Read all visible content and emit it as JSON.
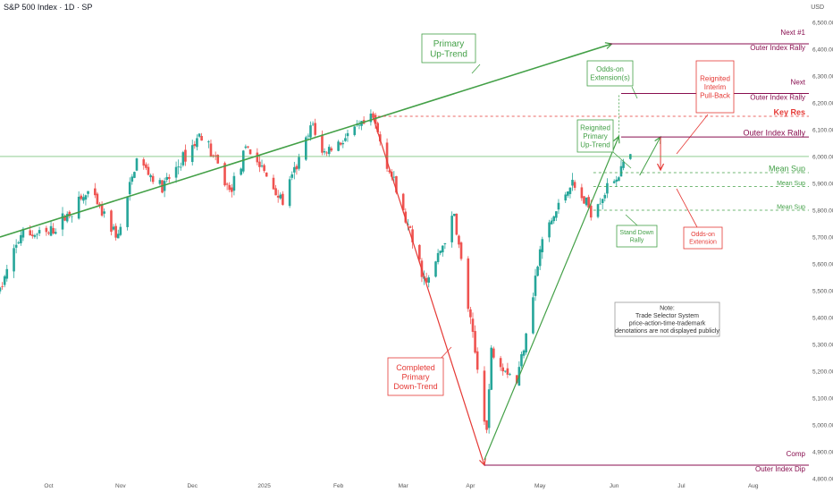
{
  "header": {
    "title": "S&P 500 Index · 1D · SP",
    "currency": "USD"
  },
  "chart_data": {
    "type": "candlestick",
    "xlabel": "",
    "ylabel": "",
    "ylim": [
      4800,
      6550
    ],
    "y_ticks": [
      4800,
      4900,
      5000,
      5100,
      5200,
      5300,
      5400,
      5500,
      5600,
      5700,
      5800,
      5900,
      6000,
      6100,
      6200,
      6300,
      6400,
      6500
    ],
    "y_tick_labels": [
      "4,800.00",
      "4,900.00",
      "5,000.00",
      "5,100.00",
      "5,200.00",
      "5,300.00",
      "5,400.00",
      "5,500.00",
      "5,600.00",
      "5,700.00",
      "5,800.00",
      "5,900.00",
      "6,000.00",
      "6,100.00",
      "6,200.00",
      "6,300.00",
      "6,400.00",
      "6,500.00"
    ],
    "x_ticks": [
      {
        "label": "Oct",
        "date": "2024-10-01"
      },
      {
        "label": "Nov",
        "date": "2024-11-01"
      },
      {
        "label": "Dec",
        "date": "2024-12-02"
      },
      {
        "label": "2025",
        "date": "2025-01-02"
      },
      {
        "label": "Feb",
        "date": "2025-02-03"
      },
      {
        "label": "Mar",
        "date": "2025-03-03"
      },
      {
        "label": "Apr",
        "date": "2025-04-01"
      },
      {
        "label": "May",
        "date": "2025-05-01"
      },
      {
        "label": "Jun",
        "date": "2025-06-02"
      },
      {
        "label": "Jul",
        "date": "2025-07-01"
      },
      {
        "label": "Aug",
        "date": "2025-08-01"
      }
    ],
    "x_range": [
      "2024-09-10",
      "2025-08-25"
    ],
    "colors": {
      "up": "#26a69a",
      "down": "#ef5350",
      "green": "#43a047",
      "red": "#e53935",
      "maroon": "#880e4f",
      "price": "#4caf50"
    },
    "anchors": [
      {
        "date": "2024-09-10",
        "close": 5500
      },
      {
        "date": "2024-09-19",
        "close": 5710
      },
      {
        "date": "2024-10-01",
        "close": 5710
      },
      {
        "date": "2024-10-18",
        "close": 5865
      },
      {
        "date": "2024-10-31",
        "close": 5700
      },
      {
        "date": "2024-11-08",
        "close": 5990
      },
      {
        "date": "2024-11-19",
        "close": 5880
      },
      {
        "date": "2024-12-06",
        "close": 6090
      },
      {
        "date": "2024-12-18",
        "close": 5870
      },
      {
        "date": "2024-12-26",
        "close": 6035
      },
      {
        "date": "2025-01-10",
        "close": 5830
      },
      {
        "date": "2025-01-23",
        "close": 6120
      },
      {
        "date": "2025-01-27",
        "close": 6010
      },
      {
        "date": "2025-02-18",
        "close": 6140
      },
      {
        "date": "2025-03-13",
        "close": 5520
      },
      {
        "date": "2025-03-25",
        "close": 5780
      },
      {
        "date": "2025-04-08",
        "close": 4980
      },
      {
        "date": "2025-04-10",
        "close": 5280
      },
      {
        "date": "2025-04-21",
        "close": 5160
      },
      {
        "date": "2025-05-02",
        "close": 5690
      },
      {
        "date": "2025-05-14",
        "close": 5900
      },
      {
        "date": "2025-05-23",
        "close": 5800
      },
      {
        "date": "2025-06-05",
        "close": 5950
      },
      {
        "date": "2025-06-09",
        "close": 6000
      }
    ],
    "last_price": {
      "value": 6000.37,
      "label": "6,000.37"
    },
    "levels": [
      {
        "value": 6420,
        "label": "6,420.00",
        "text": [
          "Next #1",
          "Outer Index Rally"
        ],
        "color": "#880e4f",
        "style": "solid"
      },
      {
        "value": 6235,
        "label": "6,235.00",
        "text": [
          "Next",
          "Outer Index Rally"
        ],
        "color": "#880e4f",
        "style": "solid"
      },
      {
        "value": 6150,
        "label": "6,150.00",
        "text": [
          "Key Res"
        ],
        "color": "#e53935",
        "style": "dashed"
      },
      {
        "value": 6073,
        "label": "6,073.00",
        "text": [
          "Outer Index Rally"
        ],
        "color": "#880e4f",
        "style": "solid"
      },
      {
        "value": 5940,
        "label": "5,940.00",
        "text": [
          "Mean Sup"
        ],
        "color": "#43a047",
        "style": "dashed"
      },
      {
        "value": 5888,
        "label": "5,888.00",
        "text": [
          "Mean Sup"
        ],
        "color": "#43a047",
        "style": "dashed"
      },
      {
        "value": 5800,
        "label": "5,800.00",
        "text": [
          "Mean Sup"
        ],
        "color": "#43a047",
        "style": "dashed"
      },
      {
        "value": 4850,
        "label": "4,850.00",
        "text": [
          "Comp",
          "Outer Index Dip"
        ],
        "color": "#880e4f",
        "style": "solid"
      }
    ],
    "annotations": [
      {
        "text": [
          "Primary",
          "Up-Trend"
        ],
        "color": "#43a047"
      },
      {
        "text": [
          "Completed",
          "Primary",
          "Down-Trend"
        ],
        "color": "#e53935"
      },
      {
        "text": [
          "Reignited",
          "Primary",
          "Up-Trend"
        ],
        "color": "#43a047"
      },
      {
        "text": [
          "Odds-on",
          "Extension(s)"
        ],
        "color": "#43a047"
      },
      {
        "text": [
          "Reignited",
          "Interim",
          "Pull-Back"
        ],
        "color": "#e53935"
      },
      {
        "text": [
          "Stand Down",
          "Rally"
        ],
        "color": "#43a047"
      },
      {
        "text": [
          "Odds-on",
          "Extension"
        ],
        "color": "#e53935"
      },
      {
        "text": [
          "Note:",
          "Trade Selector System",
          "price-action-time-trademark",
          "denotations are not displayed publicly"
        ],
        "color": "#333333"
      }
    ]
  }
}
